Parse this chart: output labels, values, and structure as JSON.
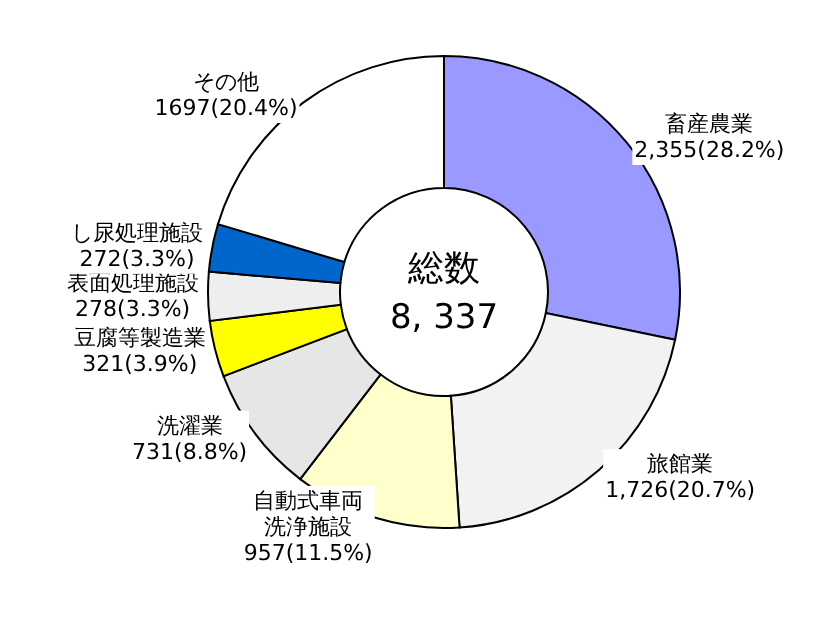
{
  "chart_data": {
    "type": "donut",
    "categories": [
      "畜産農業",
      "旅館業",
      "自動式車両洗浄施設",
      "洗濯業",
      "豆腐等製造業",
      "表面処理施設",
      "し尿処理施設",
      "その他"
    ],
    "values": [
      2355,
      1726,
      957,
      731,
      321,
      278,
      272,
      1697
    ],
    "value_labels": [
      "2,355(28.2%)",
      "1,726(20.7%)",
      "957(11.5%)",
      "731(8.8%)",
      "321(3.9%)",
      "278(3.3%)",
      "272(3.3%)",
      "1697(20.4%)"
    ],
    "colors": [
      "#9999ff",
      "#f2f2f2",
      "#ffffcc",
      "#e6e6e6",
      "#ffff00",
      "#eeeeee",
      "#0066cc",
      "#ffffff"
    ],
    "annotations": [
      "総数",
      "8, 337"
    ]
  }
}
